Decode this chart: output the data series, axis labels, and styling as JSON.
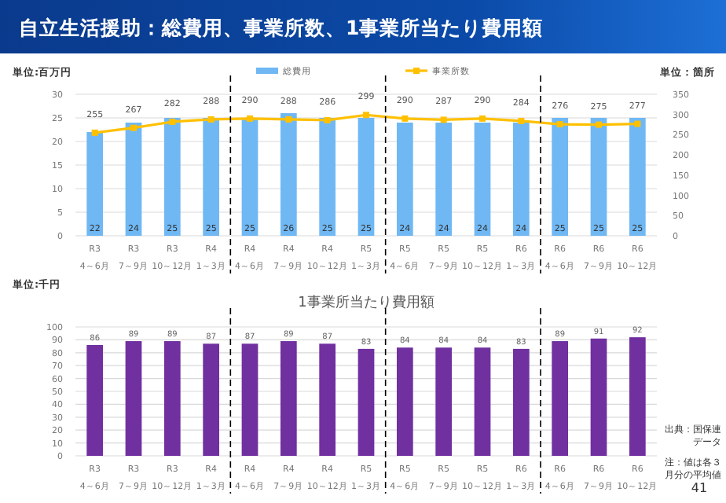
{
  "chart_data": [
    {
      "type": "bar",
      "title": "自立生活援助：総費用、事業所数、1事業所当たり費用額",
      "ylabel": "単位:百万円",
      "y2label": "単位：箇所",
      "categories": [
        "R3\n4～6月",
        "R3\n7～9月",
        "R3\n10～12月",
        "R4\n1～3月",
        "R4\n4～6月",
        "R4\n7～9月",
        "R4\n10～12月",
        "R5\n1～3月",
        "R5\n4～6月",
        "R5\n7～9月",
        "R5\n10～12月",
        "R6\n1～3月",
        "R6\n4～6月",
        "R6\n7～9月",
        "R6\n10～12月"
      ],
      "series": [
        {
          "name": "総費用",
          "type": "bar",
          "color": "#6fb8f4",
          "values": [
            22,
            24,
            25,
            25,
            25,
            26,
            25,
            25,
            24,
            24,
            24,
            24,
            25,
            25,
            25
          ]
        },
        {
          "name": "事業所数",
          "type": "line",
          "axis": "y2",
          "color": "#ffc000",
          "values": [
            255,
            267,
            282,
            288,
            290,
            288,
            286,
            299,
            290,
            287,
            290,
            284,
            276,
            275,
            277
          ]
        }
      ],
      "ylim": [
        0,
        30
      ],
      "yticks": [
        0,
        5,
        10,
        15,
        20,
        25,
        30
      ],
      "y2lim": [
        0,
        350
      ],
      "y2ticks": [
        0,
        50,
        100,
        150,
        200,
        250,
        300,
        350
      ],
      "grid": "y",
      "legend": "top",
      "marker": "square",
      "data_labels": true
    },
    {
      "type": "bar",
      "title": "1事業所当たり費用額",
      "ylabel": "単位:千円",
      "categories": [
        "R3\n4～6月",
        "R3\n7～9月",
        "R3\n10～12月",
        "R4\n1～3月",
        "R4\n4～6月",
        "R4\n7～9月",
        "R4\n10～12月",
        "R5\n1～3月",
        "R5\n4～6月",
        "R5\n7～9月",
        "R5\n10～12月",
        "R6\n1～3月",
        "R6\n4～6月",
        "R6\n7～9月",
        "R6\n10～12月"
      ],
      "values": [
        86,
        89,
        89,
        87,
        87,
        89,
        87,
        83,
        84,
        84,
        84,
        83,
        89,
        91,
        92
      ],
      "color": "#7030a0",
      "ylim": [
        0,
        100
      ],
      "yticks": [
        0,
        10,
        20,
        30,
        40,
        50,
        60,
        70,
        80,
        90,
        100
      ],
      "grid": "y",
      "data_labels": true,
      "annotations": [
        "出典：国保連データ",
        "注：値は各３月分の平均値",
        "41"
      ]
    }
  ]
}
